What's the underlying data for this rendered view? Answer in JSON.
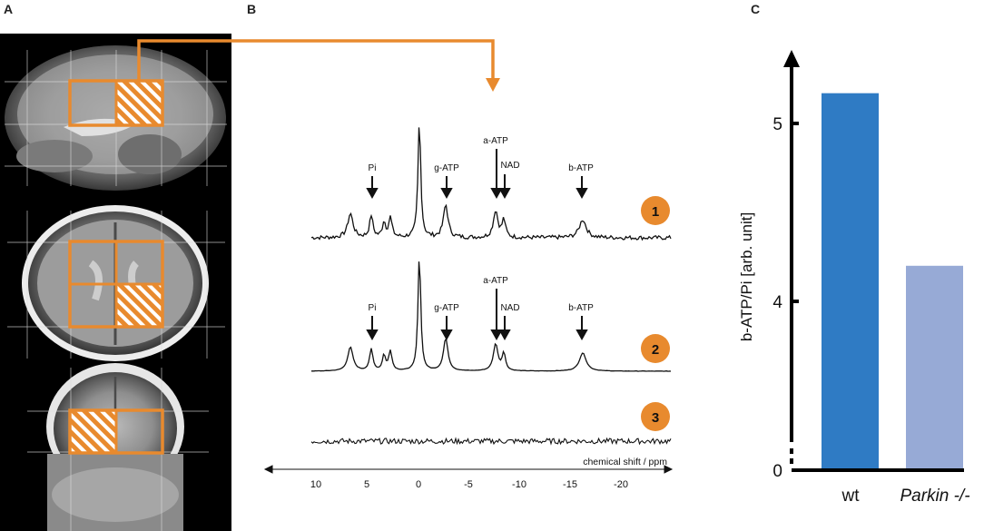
{
  "panels": {
    "a": "A",
    "b": "B",
    "c": "C"
  },
  "colors": {
    "orange": "#E88A2E",
    "wt_bar": "#2F7BC4",
    "parkin_bar": "#97AAD6",
    "axis": "#000000"
  },
  "mri": {
    "views": [
      "sagittal",
      "axial",
      "coronal"
    ]
  },
  "spectra": {
    "peak_labels_top": [
      "Pi",
      "g-ATP",
      "a-ATP",
      "NAD",
      "b-ATP"
    ],
    "peak_labels_mid": [
      "Pi",
      "g-ATP",
      "a-ATP",
      "NAD",
      "b-ATP"
    ],
    "badges": [
      "1",
      "2",
      "3"
    ],
    "x_axis_label": "chemical shift / ppm",
    "x_ticks": [
      "10",
      "5",
      "0",
      "-5",
      "-10",
      "-15",
      "-20"
    ]
  },
  "chart_data": {
    "type": "bar",
    "categories": [
      "wt",
      "Parkin -/-"
    ],
    "values": [
      5.17,
      4.2
    ],
    "ylabel": "b-ATP/Pi [arb. unit]",
    "y_ticks": [
      "0",
      "4",
      "5"
    ],
    "axis_break": true,
    "ylim": [
      0,
      5.4
    ],
    "colors": [
      "#2F7BC4",
      "#97AAD6"
    ]
  }
}
